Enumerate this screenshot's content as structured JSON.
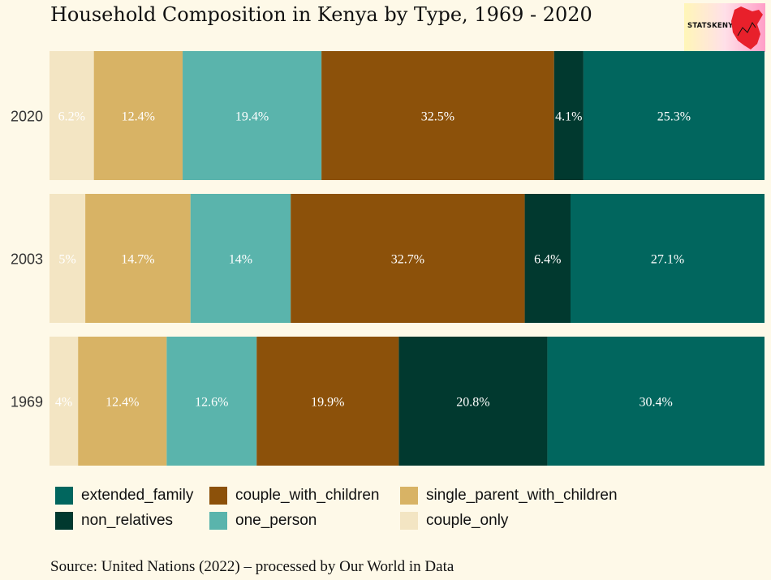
{
  "chart_data": {
    "type": "bar",
    "orientation": "horizontal",
    "stacked": true,
    "title": "Household Composition in Kenya by Type, 1969 - 2020",
    "categories": [
      "2020",
      "2003",
      "1969"
    ],
    "series": [
      {
        "name": "couple_only",
        "color": "#f3e5c3",
        "values": [
          6.2,
          5,
          4
        ],
        "labels": [
          "6.2%",
          "5%",
          "4%"
        ]
      },
      {
        "name": "single_parent_with_children",
        "color": "#d8b365",
        "values": [
          12.4,
          14.7,
          12.4
        ],
        "labels": [
          "12.4%",
          "14.7%",
          "12.4%"
        ]
      },
      {
        "name": "one_person",
        "color": "#5ab4ac",
        "values": [
          19.4,
          14,
          12.6
        ],
        "labels": [
          "19.4%",
          "14%",
          "12.6%"
        ]
      },
      {
        "name": "couple_with_children",
        "color": "#8c510a",
        "values": [
          32.5,
          32.7,
          19.9
        ],
        "labels": [
          "32.5%",
          "32.7%",
          "19.9%"
        ]
      },
      {
        "name": "non_relatives",
        "color": "#01392f",
        "values": [
          4.1,
          6.4,
          20.8
        ],
        "labels": [
          "4.1%",
          "6.4%",
          "20.8%"
        ]
      },
      {
        "name": "extended_family",
        "color": "#01665e",
        "values": [
          25.3,
          27.1,
          30.4
        ],
        "labels": [
          "25.3%",
          "27.1%",
          "30.4%"
        ]
      }
    ],
    "legend_order": [
      "extended_family",
      "couple_with_children",
      "single_parent_with_children",
      "non_relatives",
      "one_person",
      "couple_only"
    ],
    "legend_position": "bottom",
    "source": "Source: United Nations (2022) – processed by Our World in Data",
    "grid": false
  },
  "logo": {
    "text": "STATSKENYA"
  }
}
